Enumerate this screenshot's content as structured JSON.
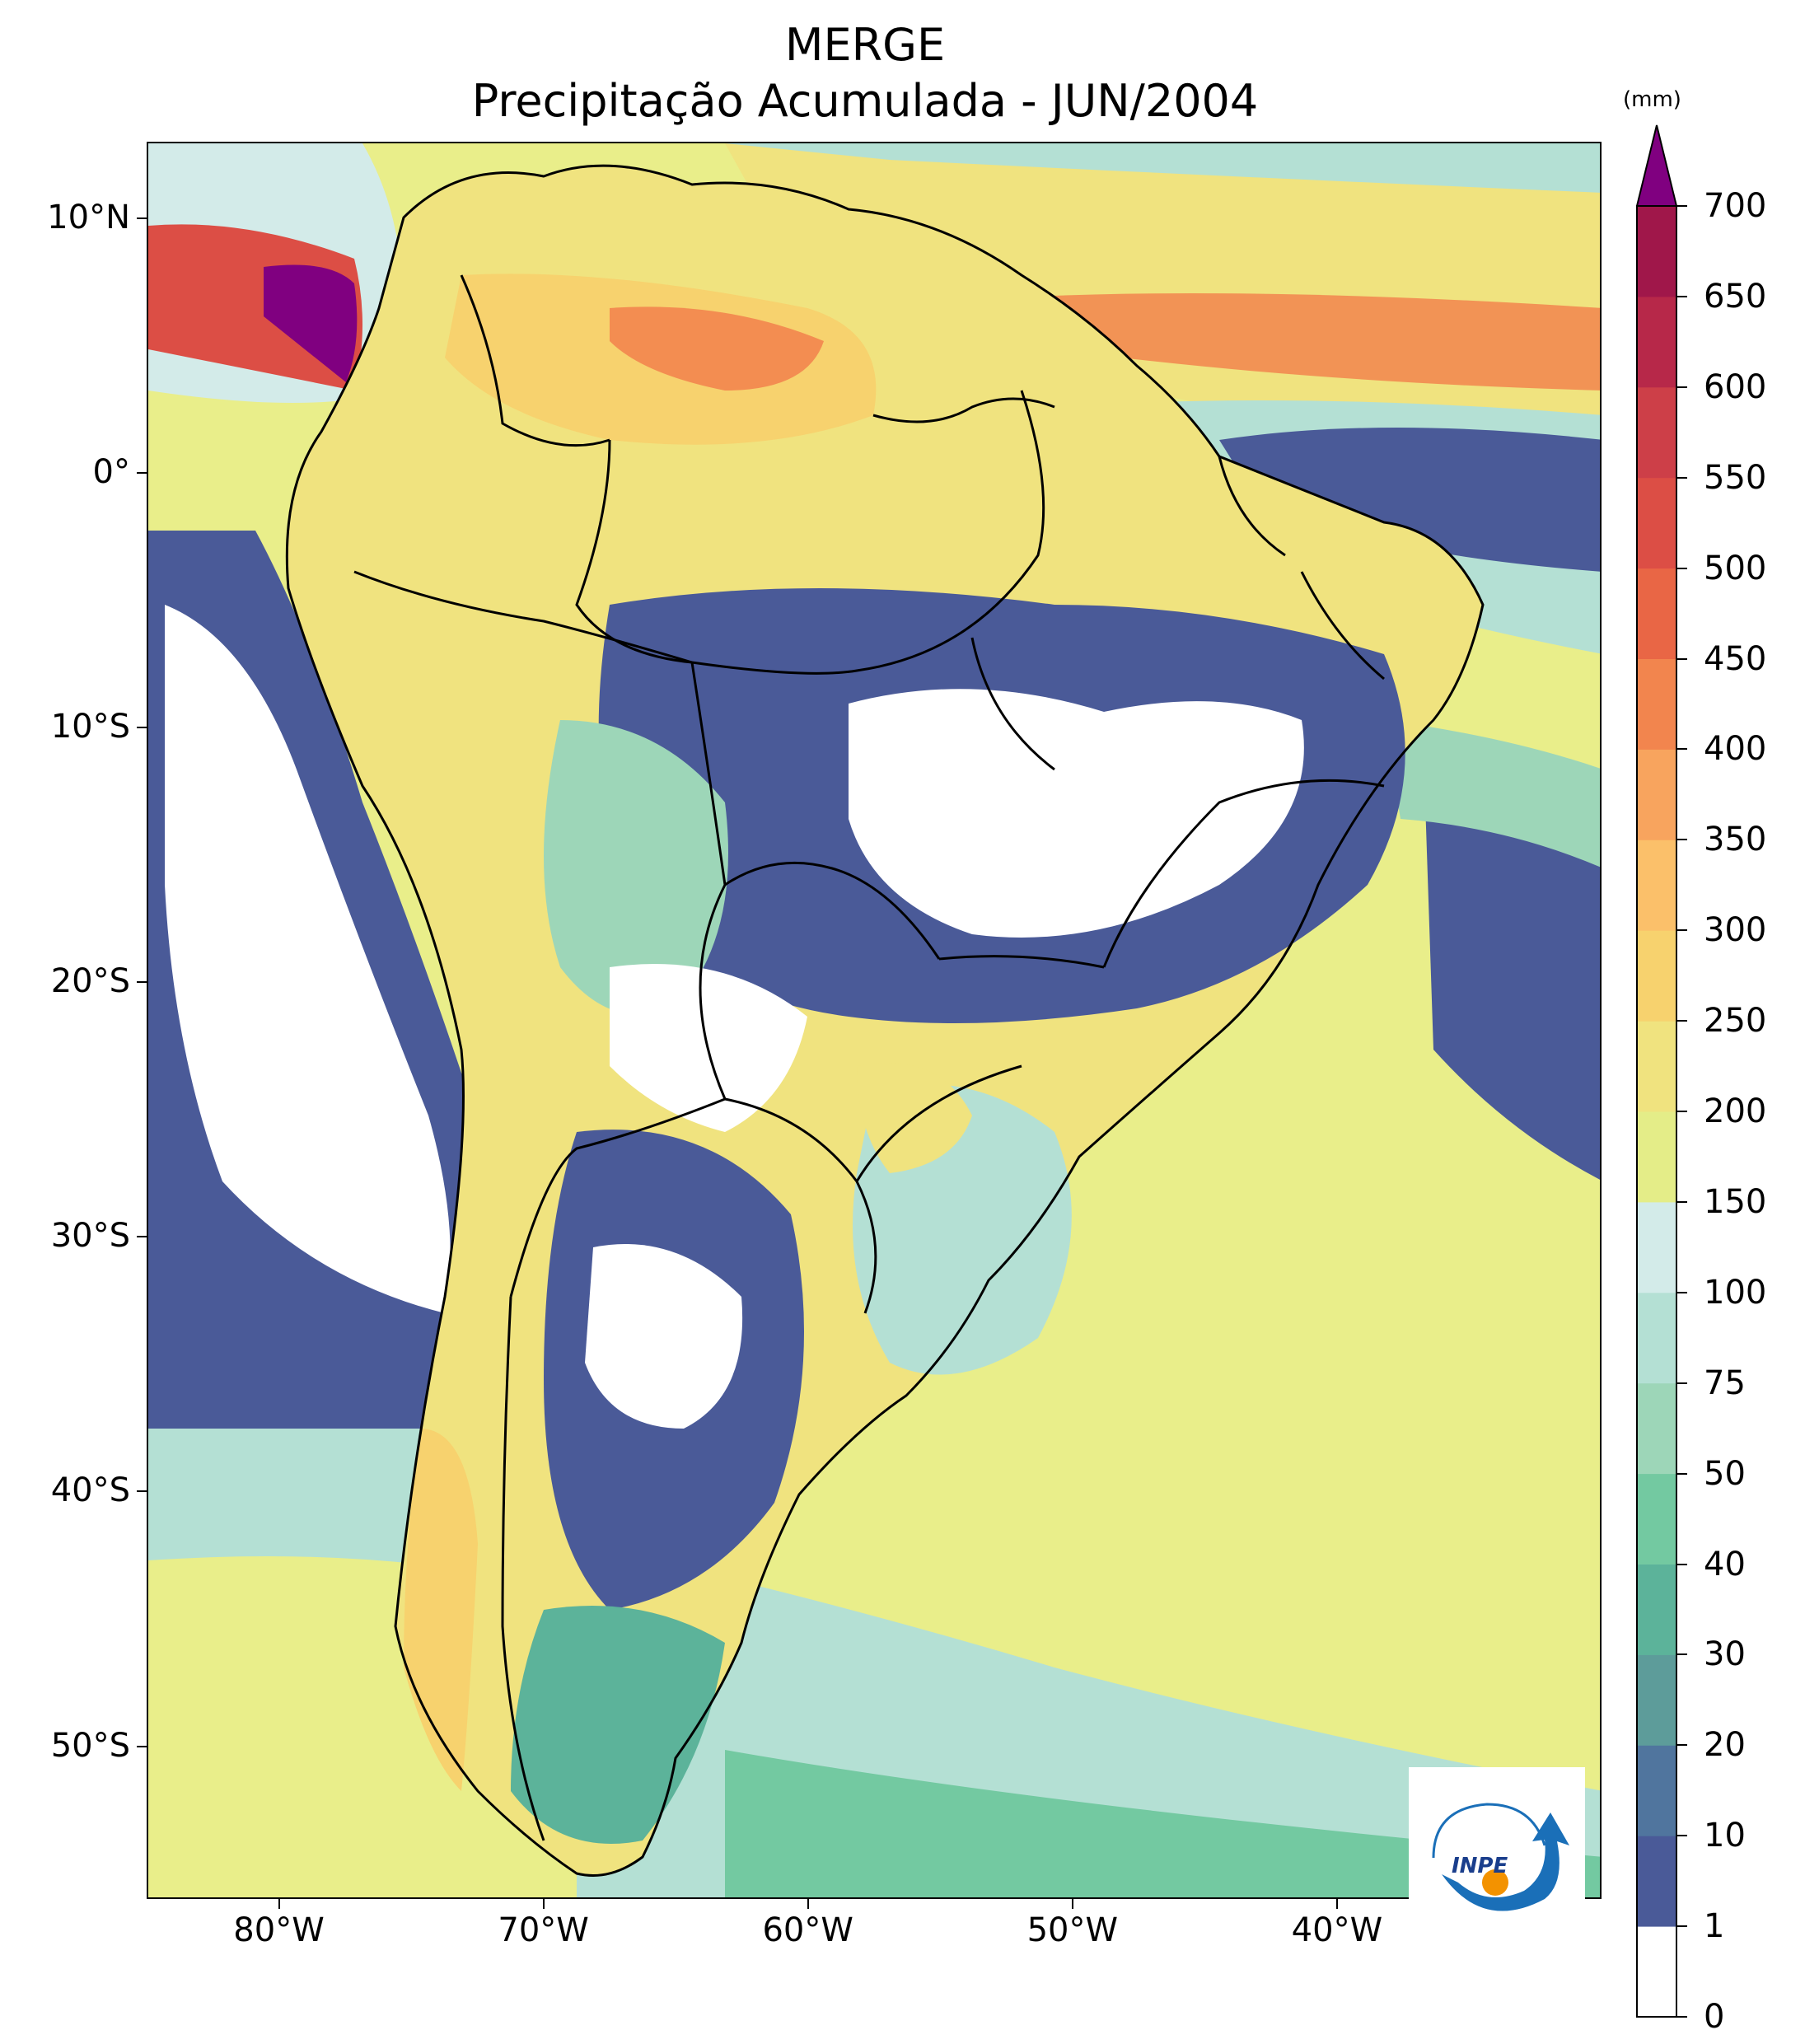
{
  "title": {
    "line1": "MERGE",
    "line2": "Precipitação Acumulada - JUN/2004"
  },
  "map": {
    "projection": "PlateCarree",
    "lon_range": [
      -85,
      -30
    ],
    "lat_range": [
      -56,
      13
    ],
    "lat_ticks": [
      {
        "value": 10,
        "label": "10°N"
      },
      {
        "value": 0,
        "label": "0°"
      },
      {
        "value": -10,
        "label": "10°S"
      },
      {
        "value": -20,
        "label": "20°S"
      },
      {
        "value": -30,
        "label": "30°S"
      },
      {
        "value": -40,
        "label": "40°S"
      },
      {
        "value": -50,
        "label": "50°S"
      }
    ],
    "lon_ticks": [
      {
        "value": -80,
        "label": "80°W"
      },
      {
        "value": -70,
        "label": "70°W"
      },
      {
        "value": -60,
        "label": "60°W"
      },
      {
        "value": -50,
        "label": "50°W"
      },
      {
        "value": -40,
        "label": "40°W"
      }
    ]
  },
  "colorbar": {
    "unit": "(mm)",
    "levels": [
      "0",
      "1",
      "10",
      "20",
      "30",
      "40",
      "50",
      "75",
      "100",
      "150",
      "200",
      "250",
      "300",
      "350",
      "400",
      "450",
      "500",
      "550",
      "600",
      "650",
      "700"
    ],
    "colors": [
      "#ffffff",
      "#4a5a98",
      "#50759e",
      "#5d9c9a",
      "#5cb39a",
      "#73c9a1",
      "#9dd6b8",
      "#b4e0d4",
      "#d3ebe9",
      "#e4ed88",
      "#f0e37f",
      "#f7d26e",
      "#fbc06a",
      "#f8a45e",
      "#f2854e",
      "#e96645",
      "#dc4e45",
      "#cd3f48",
      "#b72849",
      "#a0174a"
    ],
    "extend_color": "#800080"
  },
  "logo": {
    "text": "INPE"
  }
}
